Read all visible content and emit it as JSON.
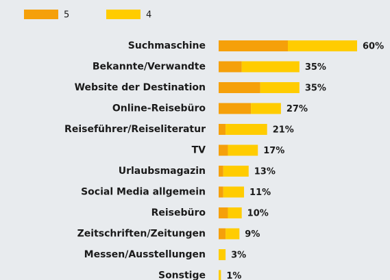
{
  "chart_data": {
    "type": "stacked-bar-horizontal",
    "categories": [
      "Suchmaschine",
      "Bekannte/Verwandte",
      "Website der Destination",
      "Online-Reisebüro",
      "Reiseführer/Reiseliteratur",
      "TV",
      "Urlaubsmagazin",
      "Social Media allgemein",
      "Reisebüro",
      "Zeitschriften/Zeitungen",
      "Messen/Ausstellungen",
      "Sonstige"
    ],
    "series": [
      {
        "name": "5",
        "color": "#f5a00a",
        "values": [
          30,
          10,
          18,
          14,
          3,
          4,
          2,
          2,
          4,
          3,
          0,
          0
        ]
      },
      {
        "name": "4",
        "color": "#ffcc00",
        "values": [
          30,
          25,
          17,
          13,
          18,
          13,
          11,
          9,
          6,
          6,
          3,
          1
        ]
      }
    ],
    "totals": {
      "values": [
        60,
        35,
        35,
        27,
        21,
        17,
        13,
        11,
        10,
        9,
        3,
        1
      ],
      "value_labels": [
        "60%",
        "35%",
        "35%",
        "27%",
        "21%",
        "17%",
        "13%",
        "11%",
        "10%",
        "9%",
        "3%",
        "1%"
      ]
    },
    "xlim": [
      0,
      60
    ],
    "legend": "top-left"
  }
}
